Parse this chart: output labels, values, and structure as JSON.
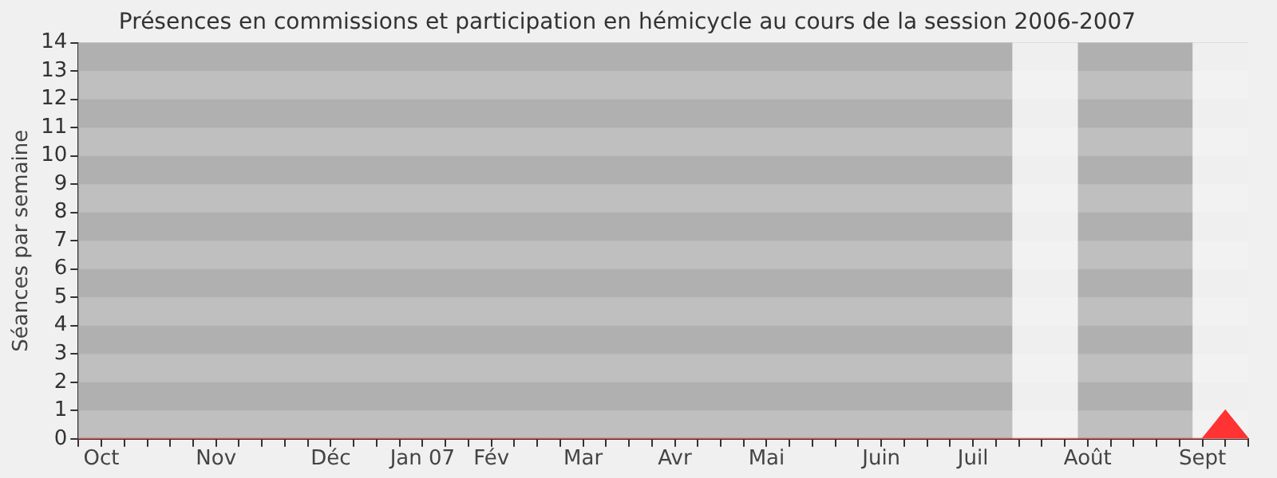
{
  "chart_data": {
    "type": "area",
    "title": "Présences en commissions et participation en hémicycle au cours de la session 2006-2007",
    "ylabel": "Séances par semaine",
    "x": [
      "2006-10-02",
      "2006-10-09",
      "2006-10-16",
      "2006-10-23",
      "2006-10-30",
      "2006-11-06",
      "2006-11-13",
      "2006-11-20",
      "2006-11-27",
      "2006-12-04",
      "2006-12-11",
      "2006-12-18",
      "2006-12-25",
      "2007-01-01",
      "2007-01-08",
      "2007-01-15",
      "2007-01-22",
      "2007-01-29",
      "2007-02-05",
      "2007-02-12",
      "2007-02-19",
      "2007-02-26",
      "2007-03-05",
      "2007-03-12",
      "2007-03-19",
      "2007-03-26",
      "2007-04-02",
      "2007-04-09",
      "2007-04-16",
      "2007-04-23",
      "2007-04-30",
      "2007-05-07",
      "2007-05-14",
      "2007-05-21",
      "2007-05-28",
      "2007-06-04",
      "2007-06-11",
      "2007-06-18",
      "2007-06-25",
      "2007-07-02",
      "2007-07-09",
      "2007-07-16",
      "2007-07-23",
      "2007-07-30",
      "2007-08-06",
      "2007-08-13",
      "2007-08-20",
      "2007-08-27",
      "2007-09-03",
      "2007-09-10",
      "2007-09-17",
      "2007-09-24"
    ],
    "series": [
      {
        "color": "#ff3333",
        "values": [
          0,
          0,
          0,
          0,
          0,
          0,
          0,
          0,
          0,
          0,
          0,
          0,
          0,
          0,
          0,
          0,
          0,
          0,
          0,
          0,
          0,
          0,
          0,
          0,
          0,
          0,
          0,
          0,
          0,
          0,
          0,
          0,
          0,
          0,
          0,
          0,
          0,
          0,
          0,
          0,
          0,
          0,
          0,
          0,
          0,
          0,
          0,
          0,
          0,
          0,
          1,
          0
        ]
      }
    ],
    "xlim": [
      "2006-10-02",
      "2007-09-24"
    ],
    "xticks": [
      {
        "value": "2006-10-02",
        "label": null
      },
      {
        "value": "2006-10-09",
        "label": "Oct"
      },
      {
        "value": "2006-10-16",
        "label": null
      },
      {
        "value": "2006-10-23",
        "label": null
      },
      {
        "value": "2006-10-30",
        "label": null
      },
      {
        "value": "2006-11-06",
        "label": null
      },
      {
        "value": "2006-11-13",
        "label": "Nov"
      },
      {
        "value": "2006-11-20",
        "label": null
      },
      {
        "value": "2006-11-27",
        "label": null
      },
      {
        "value": "2006-12-04",
        "label": null
      },
      {
        "value": "2006-12-11",
        "label": null
      },
      {
        "value": "2006-12-18",
        "label": "Déc"
      },
      {
        "value": "2006-12-25",
        "label": null
      },
      {
        "value": "2007-01-01",
        "label": null
      },
      {
        "value": "2007-01-08",
        "label": null
      },
      {
        "value": "2007-01-15",
        "label": "Jan 07"
      },
      {
        "value": "2007-01-22",
        "label": null
      },
      {
        "value": "2007-01-29",
        "label": null
      },
      {
        "value": "2007-02-05",
        "label": "Fév"
      },
      {
        "value": "2007-02-12",
        "label": null
      },
      {
        "value": "2007-02-19",
        "label": null
      },
      {
        "value": "2007-02-26",
        "label": null
      },
      {
        "value": "2007-03-05",
        "label": "Mar"
      },
      {
        "value": "2007-03-12",
        "label": null
      },
      {
        "value": "2007-03-19",
        "label": null
      },
      {
        "value": "2007-03-26",
        "label": null
      },
      {
        "value": "2007-04-02",
        "label": "Avr"
      },
      {
        "value": "2007-04-09",
        "label": null
      },
      {
        "value": "2007-04-16",
        "label": null
      },
      {
        "value": "2007-04-23",
        "label": null
      },
      {
        "value": "2007-04-30",
        "label": "Mai"
      },
      {
        "value": "2007-05-07",
        "label": null
      },
      {
        "value": "2007-05-14",
        "label": null
      },
      {
        "value": "2007-05-21",
        "label": null
      },
      {
        "value": "2007-05-28",
        "label": null
      },
      {
        "value": "2007-06-04",
        "label": "Juin"
      },
      {
        "value": "2007-06-11",
        "label": null
      },
      {
        "value": "2007-06-18",
        "label": null
      },
      {
        "value": "2007-06-25",
        "label": null
      },
      {
        "value": "2007-07-02",
        "label": "Juil"
      },
      {
        "value": "2007-07-09",
        "label": null
      },
      {
        "value": "2007-07-16",
        "label": null
      },
      {
        "value": "2007-07-23",
        "label": null
      },
      {
        "value": "2007-07-30",
        "label": null
      },
      {
        "value": "2007-08-06",
        "label": "Août"
      },
      {
        "value": "2007-08-13",
        "label": null
      },
      {
        "value": "2007-08-20",
        "label": null
      },
      {
        "value": "2007-08-27",
        "label": null
      },
      {
        "value": "2007-09-03",
        "label": null
      },
      {
        "value": "2007-09-10",
        "label": "Sept"
      },
      {
        "value": "2007-09-17",
        "label": null
      },
      {
        "value": "2007-09-24",
        "label": null
      }
    ],
    "ylim": [
      0,
      14
    ],
    "yticks": [
      0,
      1,
      2,
      3,
      4,
      5,
      6,
      7,
      8,
      9,
      10,
      11,
      12,
      13,
      14
    ],
    "bands": [
      {
        "axis": "x",
        "from": "2007-07-14",
        "to": "2007-08-03",
        "color": "#fafafa"
      },
      {
        "axis": "x",
        "from": "2007-09-07",
        "to": "2007-09-24",
        "color": "#fafafa"
      }
    ]
  }
}
